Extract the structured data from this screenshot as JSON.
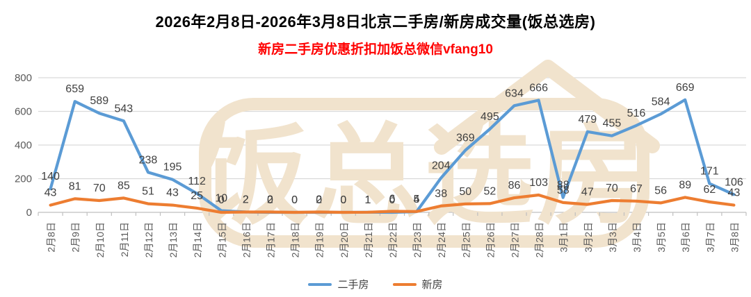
{
  "header": {
    "title": "2026年2月8日-2026年3月8日北京二手房/新房成交量(饭总选房)",
    "subtitle": "新房二手房优惠折扣加饭总微信vfang10",
    "title_color": "#000000",
    "subtitle_color": "#FF0000"
  },
  "watermark": {
    "text": "饭总选房",
    "color": "#F1E3CD"
  },
  "chart_data": {
    "type": "line",
    "title": "2026年2月8日-2026年3月8日北京二手房/新房成交量(饭总选房)",
    "subtitle": "新房二手房优惠折扣加饭总微信vfang10",
    "categories": [
      "2月8日",
      "2月9日",
      "2月10日",
      "2月11日",
      "2月12日",
      "2月13日",
      "2月14日",
      "2月15日",
      "2月16日",
      "2月17日",
      "2月18日",
      "2月19日",
      "2月20日",
      "2月21日",
      "2月22日",
      "2月23日",
      "2月24日",
      "2月25日",
      "2月26日",
      "2月27日",
      "2月28日",
      "3月1日",
      "3月2日",
      "3月3日",
      "3月4日",
      "3月5日",
      "3月6日",
      "3月7日",
      "3月8日"
    ],
    "series": [
      {
        "name": "二手房",
        "color": "#5B9BD5",
        "values": [
          140,
          659,
          589,
          543,
          238,
          195,
          112,
          10,
          2,
          0,
          0,
          0,
          0,
          1,
          0,
          4,
          204,
          369,
          495,
          634,
          666,
          88,
          479,
          455,
          516,
          584,
          669,
          171,
          106
        ]
      },
      {
        "name": "新房",
        "color": "#ED7D31",
        "values": [
          43,
          81,
          70,
          85,
          51,
          43,
          25,
          0,
          2,
          2,
          0,
          2,
          0,
          1,
          6,
          5,
          38,
          50,
          52,
          86,
          103,
          58,
          47,
          70,
          67,
          56,
          89,
          62,
          43
        ]
      }
    ],
    "ylim": [
      0,
      800
    ],
    "y_ticks": [
      0,
      200,
      400,
      600,
      800
    ],
    "grid": true,
    "legend_position": "bottom",
    "label_color": "#404040",
    "axis_text_color": "#595959",
    "gridline_color": "#D9D9D9",
    "axis_line_color": "#BFBFBF"
  }
}
